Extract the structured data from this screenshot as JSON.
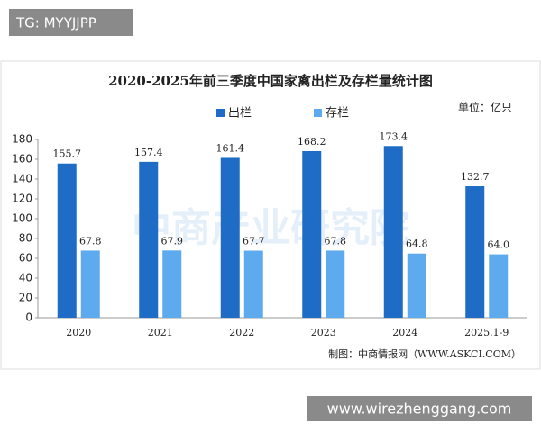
{
  "header": {
    "tag": "TG: MYYJJPP"
  },
  "chart_data": {
    "type": "bar",
    "title": "2020-2025年前三季度中国家禽出栏及存栏量统计图",
    "unit": "单位：亿只",
    "source": "制图：中商情报网（WWW.ASKCI.COM）",
    "watermark": "中商产业研究院",
    "categories": [
      "2020",
      "2021",
      "2022",
      "2023",
      "2024",
      "2025.1-9"
    ],
    "series": [
      {
        "name": "出栏",
        "color": "#1f6cc6",
        "values": [
          155.7,
          157.4,
          161.4,
          168.2,
          173.4,
          132.7
        ]
      },
      {
        "name": "存栏",
        "color": "#5eaaee",
        "values": [
          67.8,
          67.9,
          67.7,
          67.8,
          64.8,
          64.0
        ],
        "value_labels": [
          "67.8",
          "67.9",
          "67.7",
          "67.8",
          "64.8",
          "64.0"
        ]
      }
    ],
    "ylim": [
      0,
      180
    ],
    "yticks": [
      0,
      20,
      40,
      60,
      80,
      100,
      120,
      140,
      160,
      180
    ],
    "grid": false
  },
  "footer": {
    "watermark": "www.wirezhenggang.com"
  }
}
